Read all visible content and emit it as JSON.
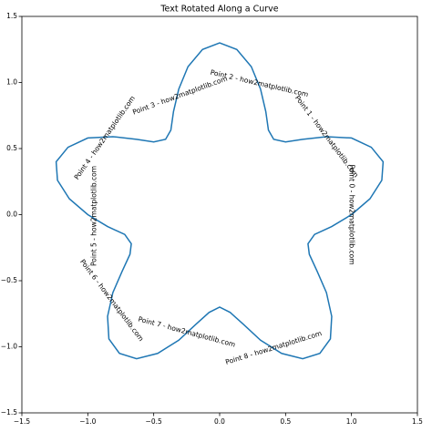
{
  "chart_data": {
    "type": "line",
    "title": "Text Rotated Along a Curve",
    "series": [
      {
        "color": "#1f77b4",
        "x": [
          1.0,
          1.14,
          1.23,
          1.24,
          1.15,
          1.0,
          0.81,
          0.63,
          0.5,
          0.41,
          0.37,
          0.35,
          0.31,
          0.24,
          0.13,
          0.0,
          -0.13,
          -0.24,
          -0.31,
          -0.35,
          -0.37,
          -0.41,
          -0.5,
          -0.63,
          -0.81,
          -1.0,
          -1.15,
          -1.24,
          -1.23,
          -1.14,
          -1.0,
          -0.85,
          -0.72,
          -0.67,
          -0.68,
          -0.74,
          -0.81,
          -0.85,
          -0.84,
          -0.76,
          -0.63,
          -0.47,
          -0.31,
          -0.18,
          -0.08,
          0.0,
          0.08,
          0.18,
          0.31,
          0.47,
          0.63,
          0.76,
          0.84,
          0.85,
          0.81,
          0.74,
          0.68,
          0.67,
          0.72,
          0.85,
          1.0
        ],
        "values": [
          0.0,
          0.12,
          0.26,
          0.4,
          0.51,
          0.58,
          0.59,
          0.57,
          0.55,
          0.57,
          0.64,
          0.78,
          0.95,
          1.12,
          1.25,
          1.3,
          1.25,
          1.12,
          0.95,
          0.78,
          0.64,
          0.57,
          0.55,
          0.57,
          0.59,
          0.58,
          0.51,
          0.4,
          0.26,
          0.12,
          0.0,
          -0.09,
          -0.15,
          -0.22,
          -0.3,
          -0.43,
          -0.59,
          -0.77,
          -0.94,
          -1.05,
          -1.09,
          -1.05,
          -0.95,
          -0.83,
          -0.74,
          -0.7,
          -0.74,
          -0.83,
          -0.95,
          -1.05,
          -1.09,
          -1.05,
          -0.94,
          -0.77,
          -0.59,
          -0.43,
          -0.3,
          -0.22,
          -0.15,
          -0.09,
          0.0
        ]
      }
    ],
    "annotations": [
      {
        "text": "Point 0 - how2matplotlib.com",
        "x": 1.0,
        "y": 0.0,
        "rotation": 90
      },
      {
        "text": "Point 1 - how2matplotlib.com",
        "x": 0.81,
        "y": 0.59,
        "rotation": 53
      },
      {
        "text": "Point 2 - how2matplotlib.com",
        "x": 0.3,
        "y": 0.99,
        "rotation": 13
      },
      {
        "text": "Point 3 - how2matplotlib.com",
        "x": -0.3,
        "y": 0.9,
        "rotation": -20
      },
      {
        "text": "Point 4 - how2matplotlib.com",
        "x": -0.87,
        "y": 0.58,
        "rotation": -55
      },
      {
        "text": "Point 5 - how2matplotlib.com",
        "x": -0.95,
        "y": -0.01,
        "rotation": -90
      },
      {
        "text": "Point 6 - how2matplotlib.com",
        "x": -0.82,
        "y": -0.65,
        "rotation": 53
      },
      {
        "text": "Point 7 - how2matplotlib.com",
        "x": -0.25,
        "y": -0.89,
        "rotation": 15
      },
      {
        "text": "Point 8 - how2matplotlib.com",
        "x": 0.41,
        "y": -1.01,
        "rotation": -17
      }
    ],
    "xlim": [
      -1.5,
      1.5
    ],
    "ylim": [
      -1.5,
      1.5
    ],
    "xticks": [
      {
        "value": -1.5,
        "label": "−1.5"
      },
      {
        "value": -1.0,
        "label": "−1.0"
      },
      {
        "value": -0.5,
        "label": "−0.5"
      },
      {
        "value": 0,
        "label": "0.0"
      },
      {
        "value": 0.5,
        "label": "0.5"
      },
      {
        "value": 1.0,
        "label": "1.0"
      },
      {
        "value": 1.5,
        "label": "1.5"
      }
    ],
    "yticks": [
      {
        "value": -1.5,
        "label": "−1.5"
      },
      {
        "value": -1.0,
        "label": "−1.0"
      },
      {
        "value": -0.5,
        "label": "−0.5"
      },
      {
        "value": 0,
        "label": "0.0"
      },
      {
        "value": 0.5,
        "label": "0.5"
      },
      {
        "value": 1.0,
        "label": "1.0"
      },
      {
        "value": 1.5,
        "label": "1.5"
      }
    ],
    "grid": false
  }
}
